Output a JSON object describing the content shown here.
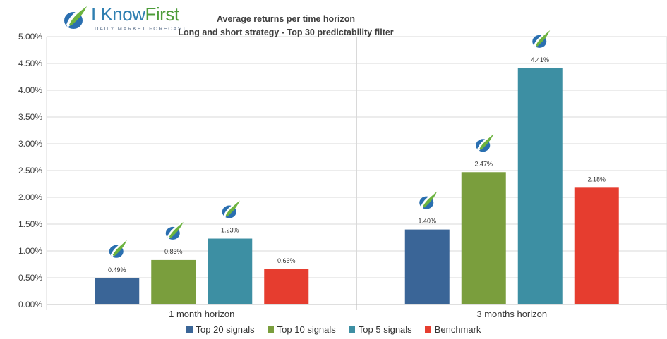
{
  "logo": {
    "name_part1": "I Know",
    "name_part2": "First",
    "tagline": "DAILY MARKET FORECAST"
  },
  "colors": {
    "top20": "#3a6597",
    "top10": "#7a9e3d",
    "top5": "#3d8fa3",
    "benchmark": "#e63d2f",
    "grid": "#d9d9d9",
    "axis_text": "#404040"
  },
  "chart_data": {
    "type": "bar",
    "title": "Average returns per time horizon",
    "subtitle": "Long and short strategy - Top 30 predictability filter",
    "categories": [
      "1 month horizon",
      "3 months horizon"
    ],
    "series": [
      {
        "name": "Top 20 signals",
        "values": [
          0.49,
          1.4
        ],
        "labels": [
          "0.49%",
          "1.40%"
        ],
        "color": "#3a6597"
      },
      {
        "name": "Top 10 signals",
        "values": [
          0.83,
          2.47
        ],
        "labels": [
          "0.83%",
          "2.47%"
        ],
        "color": "#7a9e3d"
      },
      {
        "name": "Top 5 signals",
        "values": [
          1.23,
          4.41
        ],
        "labels": [
          "1.23%",
          "4.41%"
        ],
        "color": "#3d8fa3"
      },
      {
        "name": "Benchmark",
        "values": [
          0.66,
          2.18
        ],
        "labels": [
          "0.66%",
          "2.18%"
        ],
        "color": "#e63d2f"
      }
    ],
    "ylim": [
      0,
      5
    ],
    "yticks": [
      "0.00%",
      "0.50%",
      "1.00%",
      "1.50%",
      "2.00%",
      "2.50%",
      "3.00%",
      "3.50%",
      "4.00%",
      "4.50%",
      "5.00%"
    ],
    "xlabel": "",
    "ylabel": "",
    "grid": true,
    "legend_position": "bottom",
    "logo_icon_series": [
      "Top 20 signals",
      "Top 10 signals",
      "Top 5 signals"
    ]
  }
}
